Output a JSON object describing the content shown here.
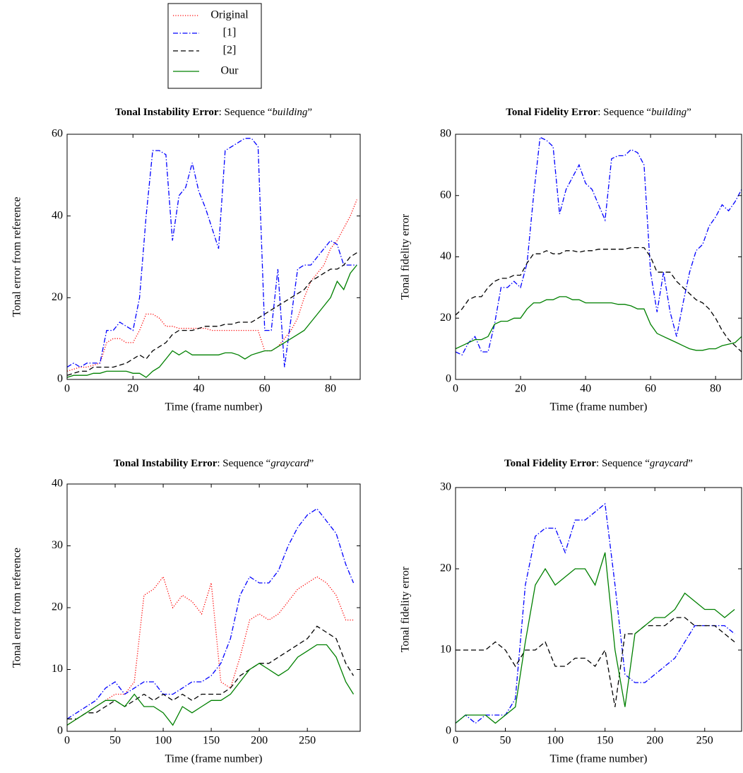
{
  "chart_data": [
    {
      "type": "line",
      "title": "Tonal Instability Error: Sequence “building”",
      "xlabel": "Time (frame number)",
      "ylabel": "Tonal error from reference",
      "x": [
        0,
        2,
        4,
        6,
        8,
        10,
        12,
        14,
        16,
        18,
        20,
        22,
        24,
        26,
        28,
        30,
        32,
        34,
        36,
        38,
        40,
        42,
        44,
        46,
        48,
        50,
        52,
        54,
        56,
        58,
        60,
        62,
        64,
        66,
        68,
        70,
        72,
        74,
        76,
        78,
        80,
        82,
        84,
        86,
        88
      ],
      "xlim": [
        0,
        89
      ],
      "ylim": [
        0,
        60
      ],
      "xticks": [
        0,
        20,
        40,
        60,
        80
      ],
      "yticks": [
        0,
        20,
        40,
        60
      ],
      "grid": false,
      "series": [
        {
          "name": "Original",
          "color": "#ff0000",
          "dash": "dotted",
          "values": [
            2,
            2.5,
            3,
            3,
            3.5,
            4,
            9,
            10,
            10,
            9,
            9,
            12,
            16,
            16,
            15,
            13,
            13,
            12.5,
            12.5,
            12.5,
            12.5,
            12.5,
            12,
            12,
            12,
            12,
            12,
            12,
            12,
            12,
            7,
            7,
            8,
            10,
            12,
            15,
            20,
            24,
            26,
            28,
            32,
            34,
            37,
            40,
            44
          ]
        },
        {
          "name": "[1]",
          "color": "#0000ff",
          "dash": "dashdotted",
          "values": [
            3,
            4,
            3,
            4,
            4,
            4,
            12,
            12,
            14,
            13,
            12,
            20,
            40,
            56,
            56,
            55,
            34,
            45,
            47,
            53,
            46,
            42,
            37,
            32,
            56,
            57,
            58,
            59,
            59,
            57,
            12,
            12,
            27,
            3,
            15,
            27,
            28,
            28,
            30,
            32,
            34,
            33,
            28,
            28,
            28
          ]
        },
        {
          "name": "[2]",
          "color": "#000000",
          "dash": "dashed",
          "values": [
            1,
            1.5,
            2,
            2,
            3,
            3,
            3,
            3,
            3.5,
            4,
            5,
            6,
            5,
            7,
            8,
            9,
            11,
            12,
            12,
            12,
            12.5,
            13,
            13,
            13,
            13.5,
            13.5,
            14,
            14,
            14,
            15,
            16,
            17,
            18,
            19,
            20,
            21,
            22,
            24,
            25,
            26,
            27,
            27,
            28,
            30,
            31
          ]
        },
        {
          "name": "Our",
          "color": "#008000",
          "dash": "solid",
          "values": [
            0.5,
            1,
            1,
            1,
            1.5,
            1.5,
            2,
            2,
            2,
            2,
            1.5,
            1.5,
            0.5,
            2,
            3,
            5,
            7,
            6,
            7,
            6,
            6,
            6,
            6,
            6,
            6.5,
            6.5,
            6,
            5,
            6,
            6.5,
            7,
            7,
            8,
            9,
            10,
            11,
            12,
            14,
            16,
            18,
            20,
            24,
            22,
            26,
            28
          ]
        }
      ]
    },
    {
      "type": "line",
      "title": "Tonal Fidelity Error: Sequence “building”",
      "xlabel": "Time (frame number)",
      "ylabel": "Tonal fidelity error",
      "x": [
        0,
        2,
        4,
        6,
        8,
        10,
        12,
        14,
        16,
        18,
        20,
        22,
        24,
        26,
        28,
        30,
        32,
        34,
        36,
        38,
        40,
        42,
        44,
        46,
        48,
        50,
        52,
        54,
        56,
        58,
        60,
        62,
        64,
        66,
        68,
        70,
        72,
        74,
        76,
        78,
        80,
        82,
        84,
        86,
        88
      ],
      "xlim": [
        0,
        88
      ],
      "ylim": [
        0,
        80
      ],
      "xticks": [
        0,
        20,
        40,
        60,
        80
      ],
      "yticks": [
        0,
        20,
        40,
        60,
        80
      ],
      "grid": false,
      "series": [
        {
          "color": "#0000ff",
          "dash": "dashdotted",
          "values": [
            9,
            8,
            12,
            14,
            9,
            9,
            18,
            30,
            30,
            32,
            30,
            38,
            60,
            79,
            78,
            76,
            54,
            62,
            66,
            70,
            64,
            62,
            57,
            52,
            72,
            73,
            73,
            75,
            74,
            70,
            35,
            22,
            35,
            22,
            14,
            25,
            35,
            42,
            44,
            50,
            53,
            57,
            55,
            58,
            62
          ]
        },
        {
          "color": "#000000",
          "dash": "dashed",
          "values": [
            21,
            23,
            26,
            27,
            27,
            30,
            32,
            33,
            33,
            34,
            34,
            38,
            41,
            41,
            42,
            41,
            41,
            42,
            42,
            41.5,
            42,
            42,
            42.5,
            42.5,
            42.5,
            42.5,
            42.5,
            43,
            43,
            43,
            40,
            35,
            35,
            35,
            32,
            30,
            28,
            26,
            25,
            23,
            20,
            16,
            13,
            11,
            9
          ]
        },
        {
          "color": "#008000",
          "dash": "solid",
          "values": [
            10,
            11,
            12,
            13,
            13,
            14,
            18,
            19,
            19,
            20,
            20,
            23,
            25,
            25,
            26,
            26,
            27,
            27,
            26,
            26,
            25,
            25,
            25,
            25,
            25,
            24.5,
            24.5,
            24,
            23,
            23,
            18,
            15,
            14,
            13,
            12,
            11,
            10,
            9.5,
            9.5,
            10,
            10,
            11,
            11.5,
            12,
            14
          ]
        }
      ]
    },
    {
      "type": "line",
      "title": "Tonal Instability Error: Sequence “graycard”",
      "xlabel": "Time (frame number)",
      "ylabel": "Tonal error from reference",
      "x": [
        0,
        10,
        20,
        30,
        40,
        50,
        60,
        70,
        80,
        90,
        100,
        110,
        120,
        130,
        140,
        150,
        160,
        170,
        180,
        190,
        200,
        210,
        220,
        230,
        240,
        250,
        260,
        270,
        280,
        290,
        298
      ],
      "xlim": [
        0,
        305
      ],
      "ylim": [
        0,
        40
      ],
      "xticks": [
        0,
        50,
        100,
        150,
        200,
        250
      ],
      "yticks": [
        0,
        10,
        20,
        30,
        40
      ],
      "grid": false,
      "series": [
        {
          "color": "#ff0000",
          "dash": "dotted",
          "values": [
            1,
            2,
            3,
            4,
            5,
            6,
            6,
            8,
            22,
            23,
            25,
            20,
            22,
            21,
            19,
            24,
            8,
            7,
            12,
            18,
            19,
            18,
            19,
            21,
            23,
            24,
            25,
            24,
            22,
            18,
            18
          ]
        },
        {
          "color": "#0000ff",
          "dash": "dashdotted",
          "values": [
            2,
            3,
            4,
            5,
            7,
            8,
            6,
            7,
            8,
            8,
            6,
            6,
            7,
            8,
            8,
            9,
            11,
            15,
            22,
            25,
            24,
            24,
            26,
            30,
            33,
            35,
            36,
            34,
            32,
            27,
            24
          ]
        },
        {
          "color": "#000000",
          "dash": "dashed",
          "values": [
            2,
            2,
            3,
            3,
            4,
            5,
            4,
            5,
            6,
            5,
            6,
            5,
            6,
            5,
            6,
            6,
            6,
            7,
            9,
            10,
            11,
            11,
            12,
            13,
            14,
            15,
            17,
            16,
            15,
            11,
            9
          ]
        },
        {
          "color": "#008000",
          "dash": "solid",
          "values": [
            1,
            2,
            3,
            4,
            5,
            5,
            4,
            6,
            4,
            4,
            3,
            1,
            4,
            3,
            4,
            5,
            5,
            6,
            8,
            10,
            11,
            10,
            9,
            10,
            12,
            13,
            14,
            14,
            12,
            8,
            6
          ]
        }
      ]
    },
    {
      "type": "line",
      "title": "Tonal Fidelity Error: Sequence “graycard”",
      "xlabel": "Time (frame number)",
      "ylabel": "Tonal fidelity error",
      "x": [
        0,
        10,
        20,
        30,
        40,
        50,
        60,
        70,
        80,
        90,
        100,
        110,
        120,
        130,
        140,
        150,
        160,
        170,
        180,
        190,
        200,
        210,
        220,
        230,
        240,
        250,
        260,
        270,
        280
      ],
      "xlim": [
        0,
        287
      ],
      "ylim": [
        0,
        30
      ],
      "xticks": [
        0,
        50,
        100,
        150,
        200,
        250
      ],
      "yticks": [
        0,
        10,
        20,
        30
      ],
      "grid": false,
      "series": [
        {
          "color": "#0000ff",
          "dash": "dashdotted",
          "values": [
            1,
            2,
            1,
            2,
            2,
            2,
            4,
            18,
            24,
            25,
            25,
            22,
            26,
            26,
            27,
            28,
            18,
            7,
            6,
            6,
            7,
            8,
            9,
            11,
            13,
            13,
            13,
            13,
            12
          ]
        },
        {
          "color": "#000000",
          "dash": "dashed",
          "values": [
            10,
            10,
            10,
            10,
            11,
            10,
            8,
            10,
            10,
            11,
            8,
            8,
            9,
            9,
            8,
            10,
            3,
            12,
            12,
            13,
            13,
            13,
            14,
            14,
            13,
            13,
            13,
            12,
            11
          ]
        },
        {
          "color": "#008000",
          "dash": "solid",
          "values": [
            1,
            2,
            2,
            2,
            1,
            2,
            3,
            11,
            18,
            20,
            18,
            19,
            20,
            20,
            18,
            22,
            10,
            3,
            12,
            13,
            14,
            14,
            15,
            17,
            16,
            15,
            15,
            14,
            15
          ]
        }
      ]
    }
  ]
}
